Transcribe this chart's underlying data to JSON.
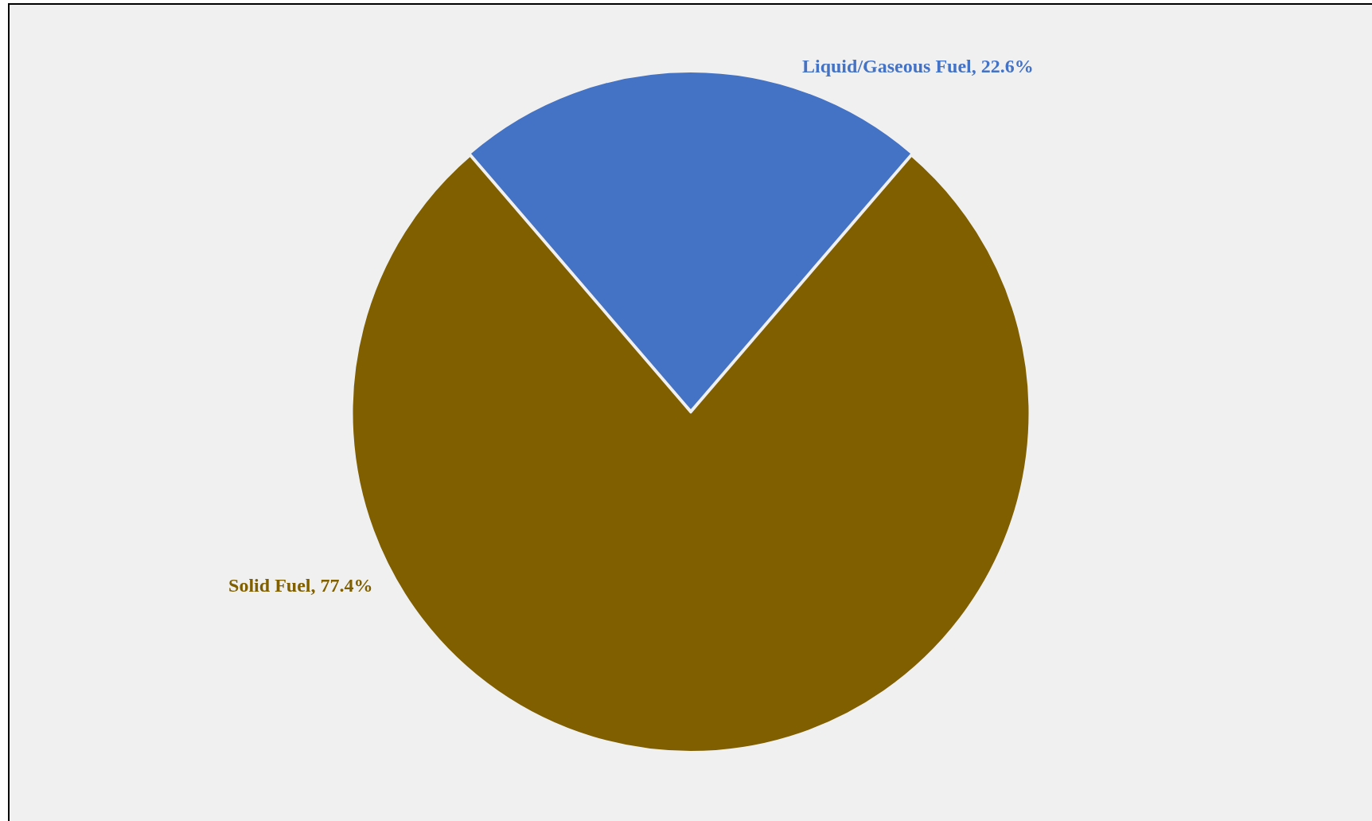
{
  "chart_data": {
    "type": "pie",
    "categories": [
      "Liquid/Gaseous Fuel",
      "Solid Fuel"
    ],
    "values": [
      22.6,
      77.4
    ],
    "colors": [
      "#4472c4",
      "#7f5f00"
    ],
    "value_labels": [
      "22.6%",
      "77.4%"
    ],
    "legend": false
  }
}
